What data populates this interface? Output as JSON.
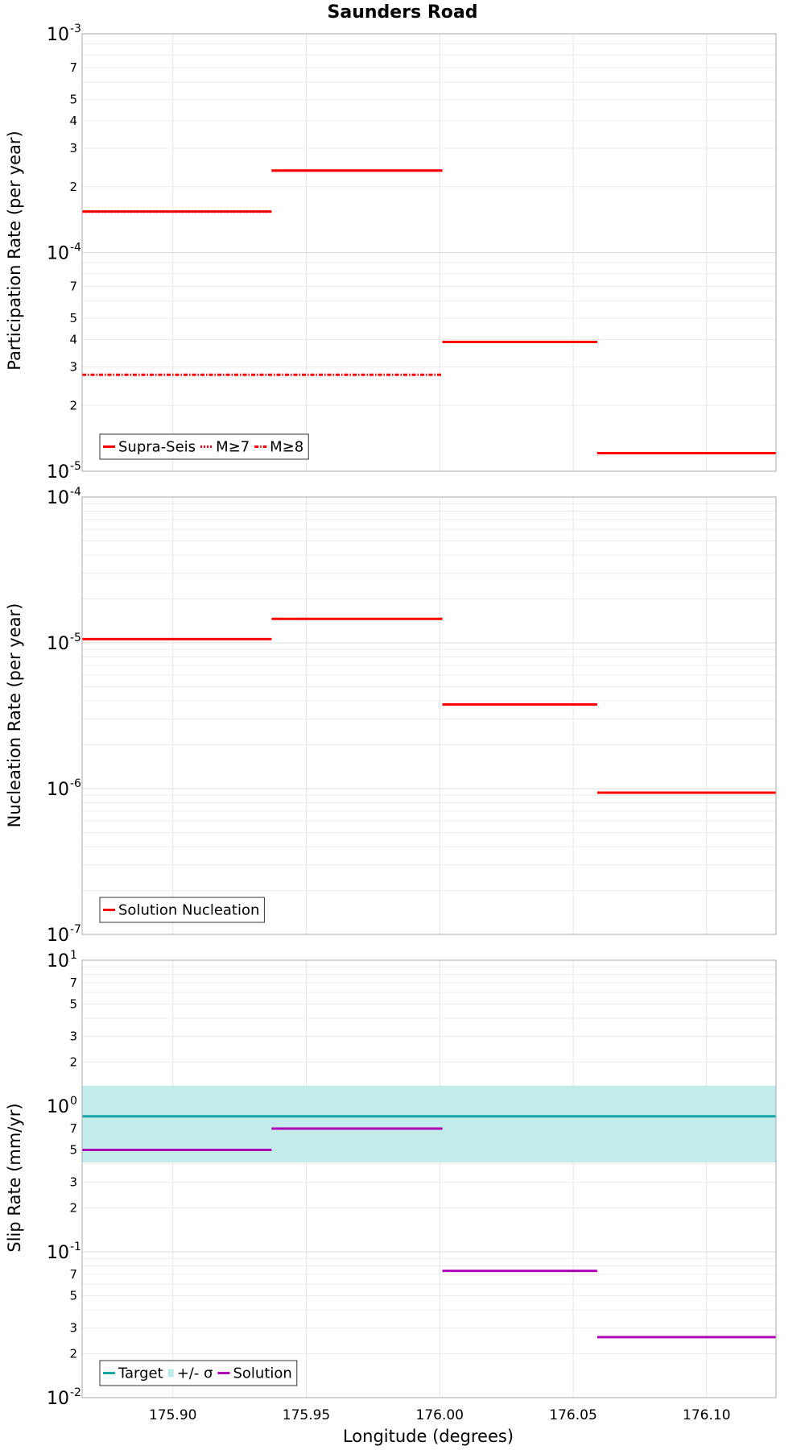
{
  "chart_data": [
    {
      "type": "line",
      "title": "Saunders Road",
      "xlabel": "",
      "ylabel": "Participation Rate (per year)",
      "xlim": [
        175.866,
        176.126
      ],
      "ylim": [
        1e-05,
        0.001
      ],
      "yscale": "log",
      "grid": true,
      "legend_position": "bottom-left",
      "x_ticks": [
        "175.90",
        "175.95",
        "176.00",
        "176.05",
        "176.10"
      ],
      "y_major_ticks": [
        {
          "value": 0.001,
          "base": "10",
          "exp": "-3"
        },
        {
          "value": 0.0001,
          "base": "10",
          "exp": "-4"
        },
        {
          "value": 1e-05,
          "base": "10",
          "exp": "-5"
        }
      ],
      "y_minor_tick_labels": [
        "2",
        "3",
        "4",
        "5",
        "7"
      ],
      "legend": [
        {
          "name": "Supra-Seis",
          "color": "#ff0000",
          "style": "solid"
        },
        {
          "name": "M≥7",
          "color": "#ff0000",
          "style": "dotted"
        },
        {
          "name": "M≥8",
          "color": "#ff0000",
          "style": "dashdot"
        }
      ],
      "series": [
        {
          "name": "Supra-Seis",
          "color": "#ff0000",
          "style": "solid",
          "segments": [
            {
              "x": [
                175.866,
                175.937
              ],
              "y": 0.000154
            },
            {
              "x": [
                175.937,
                176.001
              ],
              "y": 0.000237
            },
            {
              "x": [
                176.001,
                176.059
              ],
              "y": 3.9e-05
            },
            {
              "x": [
                176.059,
                176.126
              ],
              "y": 1.21e-05
            }
          ]
        },
        {
          "name": "M≥7",
          "color": "#ff0000",
          "style": "dotted",
          "segments": [
            {
              "x": [
                175.866,
                175.937
              ],
              "y": 0.000154
            },
            {
              "x": [
                175.937,
                176.001
              ],
              "y": 0.000237
            },
            {
              "x": [
                176.001,
                176.059
              ],
              "y": 3.9e-05
            },
            {
              "x": [
                176.059,
                176.126
              ],
              "y": 1.21e-05
            }
          ]
        },
        {
          "name": "M≥8",
          "color": "#ff0000",
          "style": "dashdot",
          "segments": [
            {
              "x": [
                175.866,
                176.001
              ],
              "y": 2.76e-05
            }
          ]
        }
      ]
    },
    {
      "type": "line",
      "xlabel": "",
      "ylabel": "Nucleation Rate (per year)",
      "xlim": [
        175.866,
        176.126
      ],
      "ylim": [
        1e-07,
        0.0001
      ],
      "yscale": "log",
      "grid": true,
      "legend_position": "bottom-left",
      "x_ticks": [
        "175.90",
        "175.95",
        "176.00",
        "176.05",
        "176.10"
      ],
      "y_major_ticks": [
        {
          "value": 0.0001,
          "base": "10",
          "exp": "-4"
        },
        {
          "value": 1e-05,
          "base": "10",
          "exp": "-5"
        },
        {
          "value": 1e-06,
          "base": "10",
          "exp": "-6"
        },
        {
          "value": 1e-07,
          "base": "10",
          "exp": "-7"
        }
      ],
      "y_minor_tick_labels": [],
      "legend": [
        {
          "name": "Solution Nucleation",
          "color": "#ff0000",
          "style": "solid"
        }
      ],
      "series": [
        {
          "name": "Solution Nucleation",
          "color": "#ff0000",
          "style": "solid",
          "segments": [
            {
              "x": [
                175.866,
                175.937
              ],
              "y": 1.06e-05
            },
            {
              "x": [
                175.937,
                176.001
              ],
              "y": 1.46e-05
            },
            {
              "x": [
                176.001,
                176.059
              ],
              "y": 3.78e-06
            },
            {
              "x": [
                176.059,
                176.126
              ],
              "y": 9.38e-07
            }
          ]
        }
      ]
    },
    {
      "type": "line",
      "xlabel": "Longitude (degrees)",
      "ylabel": "Slip Rate (mm/yr)",
      "xlim": [
        175.866,
        176.126
      ],
      "ylim": [
        0.01,
        10
      ],
      "yscale": "log",
      "grid": true,
      "legend_position": "bottom-left",
      "x_ticks": [
        "175.90",
        "175.95",
        "176.00",
        "176.05",
        "176.10"
      ],
      "y_major_ticks": [
        {
          "value": 10,
          "base": "10",
          "exp": "1"
        },
        {
          "value": 1,
          "base": "10",
          "exp": "0"
        },
        {
          "value": 0.1,
          "base": "10",
          "exp": "-1"
        },
        {
          "value": 0.01,
          "base": "10",
          "exp": "-2"
        }
      ],
      "y_minor_tick_labels": [
        "2",
        "3",
        "5",
        "7"
      ],
      "legend": [
        {
          "name": "Target",
          "color": "#1aa6a6",
          "style": "solid"
        },
        {
          "name": "+/- σ",
          "color": "#bfeaea",
          "style": "band"
        },
        {
          "name": "Solution",
          "color": "#b000b5",
          "style": "solid"
        }
      ],
      "band": {
        "name": "+/- σ",
        "color": "#c3ebeb",
        "y_low": 0.41,
        "y_high": 1.38
      },
      "series": [
        {
          "name": "Target",
          "color": "#1aa6a6",
          "style": "solid",
          "segments": [
            {
              "x": [
                175.866,
                176.126
              ],
              "y": 0.85
            }
          ]
        },
        {
          "name": "Solution",
          "color": "#b000b5",
          "style": "solid",
          "segments": [
            {
              "x": [
                175.866,
                175.937
              ],
              "y": 0.5
            },
            {
              "x": [
                175.937,
                176.001
              ],
              "y": 0.7
            },
            {
              "x": [
                176.001,
                176.059
              ],
              "y": 0.074
            },
            {
              "x": [
                176.059,
                176.126
              ],
              "y": 0.026
            }
          ]
        }
      ]
    }
  ]
}
